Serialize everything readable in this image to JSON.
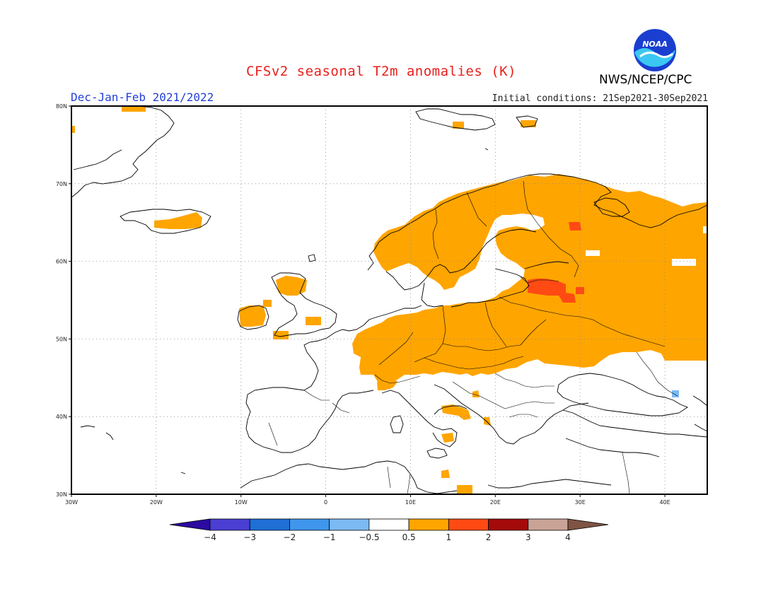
{
  "header": {
    "title": "CFSv2 seasonal T2m anomalies (K)",
    "period": "Dec-Jan-Feb 2021/2022",
    "initial_conditions": "Initial conditions: 21Sep2021-30Sep2021",
    "agency": "NWS/NCEP/CPC",
    "logo_text": "NOAA"
  },
  "axes": {
    "lon_labels": [
      "30W",
      "20W",
      "10W",
      "0",
      "10E",
      "20E",
      "30E",
      "40E"
    ],
    "lat_labels": [
      "30N",
      "40N",
      "50N",
      "60N",
      "70N",
      "80N"
    ],
    "lon_range": [
      -30,
      45
    ],
    "lat_range": [
      30,
      80
    ],
    "grid": "dotted"
  },
  "colorbar": {
    "labels": [
      "-4",
      "-3",
      "-2",
      "-1",
      "-0.5",
      "0.5",
      "1",
      "2",
      "3",
      "4"
    ],
    "colors": [
      "#2c0aa0",
      "#4a3fd2",
      "#1f6fd6",
      "#3f96ec",
      "#7cbaf3",
      "#ffffff",
      "#ffa500",
      "#ff4a14",
      "#a40a0a",
      "#c9a396",
      "#7f5444"
    ]
  },
  "legend_colors": {
    "anomaly_0_5_to_1": "#ffa500",
    "anomaly_1_to_2": "#ff4a14",
    "anomaly_minus_1_to_minus_0_5": "#7cbaf3"
  }
}
